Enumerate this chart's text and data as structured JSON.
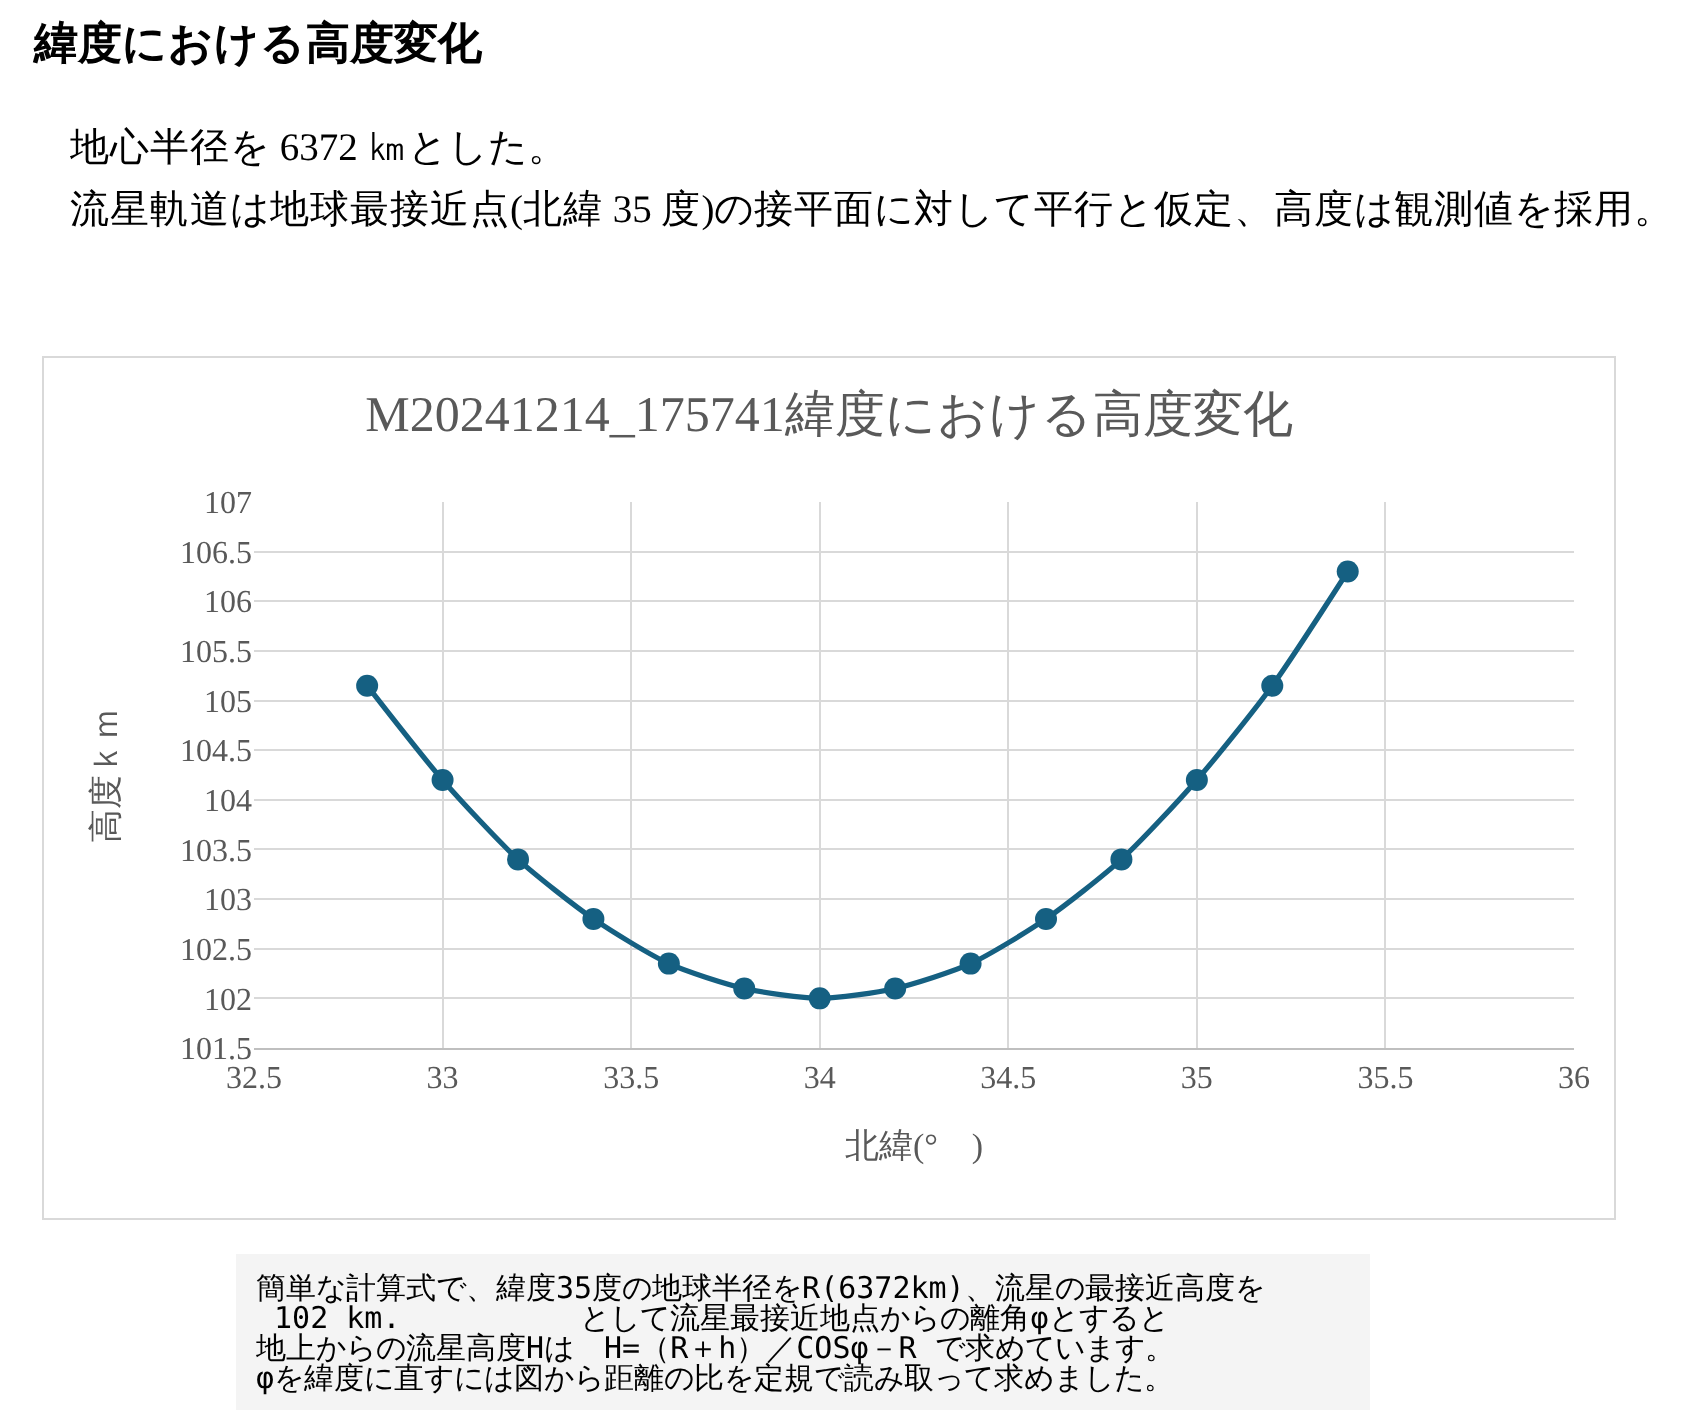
{
  "chart_data": {
    "type": "line",
    "title": "M20241214_175741緯度における高度変化",
    "xlabel": "北緯(°　)",
    "ylabel": "高度ｋｍ",
    "x": [
      32.8,
      33.0,
      33.2,
      33.4,
      33.6,
      33.8,
      34.0,
      34.2,
      34.4,
      34.6,
      34.8,
      35.0,
      35.2,
      35.4
    ],
    "values": [
      105.15,
      104.2,
      103.4,
      102.8,
      102.35,
      102.1,
      102.0,
      102.1,
      102.35,
      102.8,
      103.4,
      104.2,
      105.15,
      106.3
    ],
    "color": "#156082",
    "xlim": [
      32.5,
      36
    ],
    "xticks": [
      32.5,
      33,
      33.5,
      34,
      34.5,
      35,
      35.5,
      36
    ],
    "ylim": [
      101.5,
      107
    ],
    "yticks": [
      101.5,
      102,
      102.5,
      103,
      103.5,
      104,
      104.5,
      105,
      105.5,
      106,
      106.5,
      107
    ],
    "grid": true,
    "marker": "circle",
    "line_style": "solid",
    "annotations": [
      "緯度における高度変化",
      "地心半径を 6372 ㎞とした。",
      "流星軌道は地球最接近点(北緯 35 度)の接平面に対して平行と仮定、高度は観測値を採用。",
      "簡単な計算式で、緯度35度の地球半径をR(6372km)、流星の最接近高度を",
      " 102 km.　　　　　　として流星最接近地点からの離角φとすると",
      "地上からの流星高度Hは　H=（R＋h）／COSφ－R で求めています。",
      "φを緯度に直すには図から距離の比を定規で読み取って求めました。"
    ]
  }
}
